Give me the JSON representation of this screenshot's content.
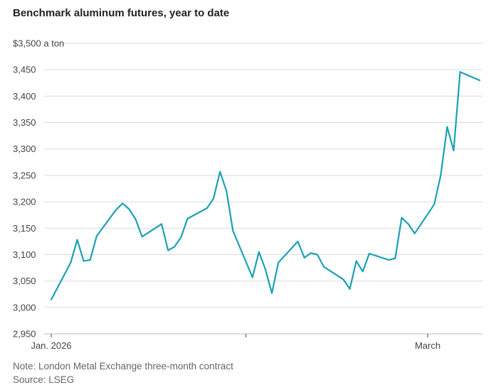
{
  "chart_data": {
    "type": "line",
    "title": "Benchmark aluminum futures, year to date",
    "unit_label": "$3,500 a ton",
    "ylim": [
      2950,
      3500
    ],
    "yticks": [
      3500,
      3450,
      3400,
      3350,
      3300,
      3250,
      3200,
      3150,
      3100,
      3050,
      3000,
      2950
    ],
    "ytick_labels": [
      "3,450",
      "3,400",
      "3,350",
      "3,300",
      "3,250",
      "3,200",
      "3,150",
      "3,100",
      "3,050",
      "3,000",
      "2,950"
    ],
    "x_axis": {
      "start": "2026-01-02",
      "end": "2026-03-09",
      "ticks": [
        {
          "date": "2026-01-02",
          "label": "Jan. 2026"
        },
        {
          "date": "2026-02-01",
          "label": ""
        },
        {
          "date": "2026-03-01",
          "label": "March"
        }
      ]
    },
    "series": [
      {
        "name": "London Metal Exchange three-month aluminum",
        "color": "#1aa1b6",
        "points": [
          [
            "2026-01-02",
            3015
          ],
          [
            "2026-01-05",
            3085
          ],
          [
            "2026-01-06",
            3128
          ],
          [
            "2026-01-07",
            3088
          ],
          [
            "2026-01-08",
            3090
          ],
          [
            "2026-01-09",
            3135
          ],
          [
            "2026-01-12",
            3185
          ],
          [
            "2026-01-13",
            3197
          ],
          [
            "2026-01-14",
            3186
          ],
          [
            "2026-01-15",
            3167
          ],
          [
            "2026-01-16",
            3134
          ],
          [
            "2026-01-19",
            3158
          ],
          [
            "2026-01-20",
            3108
          ],
          [
            "2026-01-21",
            3115
          ],
          [
            "2026-01-22",
            3133
          ],
          [
            "2026-01-23",
            3168
          ],
          [
            "2026-01-26",
            3188
          ],
          [
            "2026-01-27",
            3206
          ],
          [
            "2026-01-28",
            3257
          ],
          [
            "2026-01-29",
            3220
          ],
          [
            "2026-01-30",
            3145
          ],
          [
            "2026-02-02",
            3057
          ],
          [
            "2026-02-03",
            3105
          ],
          [
            "2026-02-04",
            3072
          ],
          [
            "2026-02-05",
            3027
          ],
          [
            "2026-02-06",
            3085
          ],
          [
            "2026-02-09",
            3125
          ],
          [
            "2026-02-10",
            3094
          ],
          [
            "2026-02-11",
            3103
          ],
          [
            "2026-02-12",
            3100
          ],
          [
            "2026-02-13",
            3077
          ],
          [
            "2026-02-16",
            3053
          ],
          [
            "2026-02-17",
            3035
          ],
          [
            "2026-02-18",
            3088
          ],
          [
            "2026-02-19",
            3068
          ],
          [
            "2026-02-20",
            3102
          ],
          [
            "2026-02-23",
            3090
          ],
          [
            "2026-02-24",
            3093
          ],
          [
            "2026-02-25",
            3170
          ],
          [
            "2026-02-26",
            3158
          ],
          [
            "2026-02-27",
            3140
          ],
          [
            "2026-03-02",
            3195
          ],
          [
            "2026-03-03",
            3250
          ],
          [
            "2026-03-04",
            3342
          ],
          [
            "2026-03-05",
            3297
          ],
          [
            "2026-03-06",
            3446
          ],
          [
            "2026-03-09",
            3430
          ]
        ]
      }
    ]
  },
  "notes": {
    "line1": "Note: London Metal Exchange three-month contract",
    "line2": "Source: LSEG"
  }
}
